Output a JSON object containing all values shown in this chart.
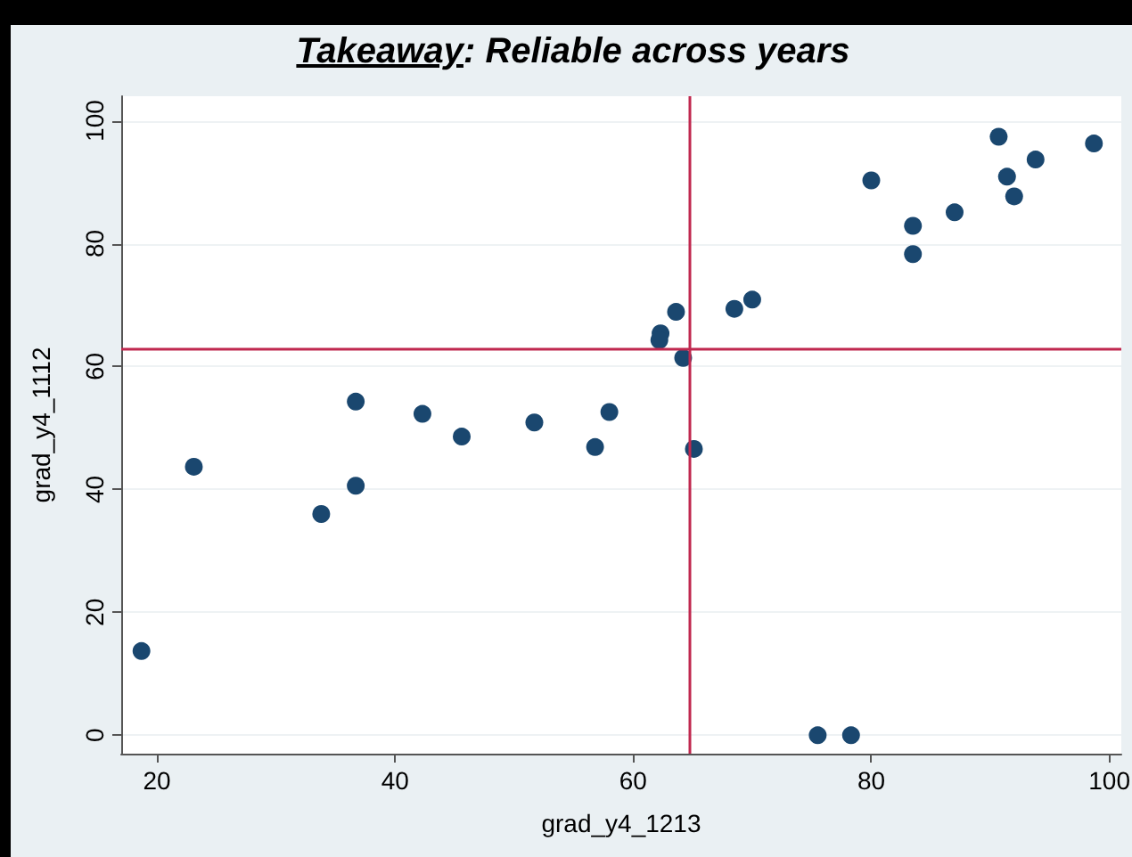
{
  "chart_data": {
    "type": "scatter",
    "title": "Takeaway: Reliable across years",
    "xlabel": "grad_y4_1213",
    "ylabel": "grad_y4_1112",
    "series": [
      {
        "color": "#1a476f",
        "x": [
          18.7,
          23.1,
          33.8,
          36.7,
          36.7,
          42.3,
          45.6,
          51.7,
          56.8,
          58,
          62.3,
          62.2,
          63.6,
          64.2,
          65.1,
          68.5,
          70,
          75.5,
          78.3,
          80,
          83.5,
          83.5,
          87,
          90.7,
          91.4,
          92,
          93.8,
          98.7
        ],
        "values": [
          13.7,
          43.7,
          36,
          40.6,
          54.3,
          52.3,
          48.6,
          50.9,
          46.9,
          52.6,
          65.4,
          64.3,
          68.9,
          61.4,
          46.6,
          69.4,
          70.9,
          0,
          0,
          90.3,
          82.9,
          78.3,
          85.1,
          97.4,
          90.9,
          87.7,
          93.7,
          96.3
        ]
      }
    ],
    "xlim": [
      17,
      101
    ],
    "ylim": [
      -3,
      104
    ],
    "xticks": [
      20,
      40,
      60,
      80,
      100
    ],
    "yticks": [
      0,
      20,
      40,
      60,
      80,
      100
    ],
    "grid": "y",
    "marker": "circle",
    "ref_lines": [
      {
        "axis": "x",
        "value": 64.7,
        "color": "#c0284f"
      },
      {
        "axis": "y",
        "value": 62.9,
        "color": "#c0284f"
      }
    ]
  }
}
